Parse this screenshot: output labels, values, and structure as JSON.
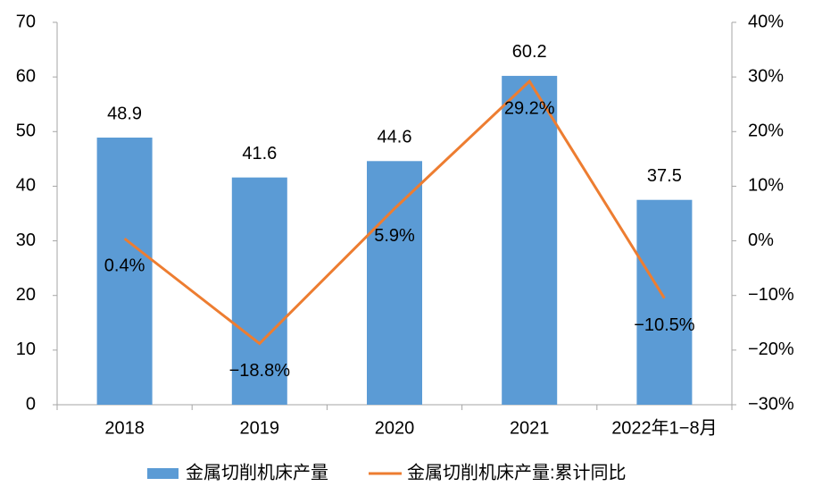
{
  "chart_data": {
    "type": "bar",
    "categories": [
      "2018",
      "2019",
      "2020",
      "2021",
      "2022年1−8月"
    ],
    "series": [
      {
        "name": "金属切削机床产量",
        "color": "#5b9bd5",
        "values": [
          48.9,
          41.6,
          44.6,
          60.2,
          37.5
        ]
      },
      {
        "name": "金属切削机床产量:累计同比",
        "color": "#ed7d31",
        "type": "line",
        "axis": "y2",
        "values": [
          0.4,
          -18.8,
          5.9,
          29.2,
          -10.5
        ],
        "value_labels": [
          "0.4%",
          "−18.8%",
          "5.9%",
          "29.2%",
          "−10.5%"
        ]
      }
    ],
    "ylim": [
      0,
      70
    ],
    "yticks": [
      0,
      10,
      20,
      30,
      40,
      50,
      60,
      70
    ],
    "y2lim": [
      -30,
      40
    ],
    "y2ticks": [
      {
        "value": -30,
        "label": "−30%"
      },
      {
        "value": -20,
        "label": "−20%"
      },
      {
        "value": -10,
        "label": "−10%"
      },
      {
        "value": 0,
        "label": "0%"
      },
      {
        "value": 10,
        "label": "10%"
      },
      {
        "value": 20,
        "label": "20%"
      },
      {
        "value": 30,
        "label": "30%"
      },
      {
        "value": 40,
        "label": "40%"
      }
    ],
    "grid": false,
    "legend": "bottom"
  }
}
